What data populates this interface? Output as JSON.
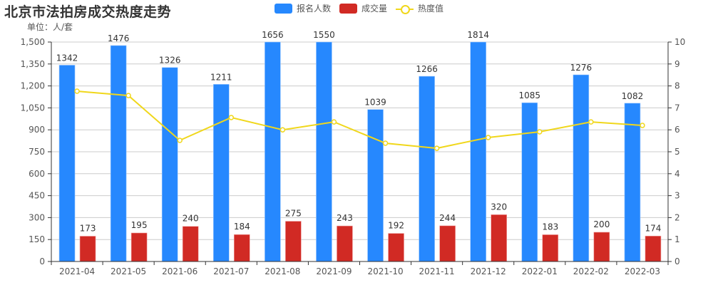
{
  "header": {
    "title": "北京市法拍房成交热度走势",
    "unit": "单位：人/套"
  },
  "legend": [
    {
      "label": "报名人数",
      "color": "#2688fe",
      "type": "bar"
    },
    {
      "label": "成交量",
      "color": "#d12a24",
      "type": "bar"
    },
    {
      "label": "热度值",
      "color": "#f0d71b",
      "type": "line"
    }
  ],
  "chart_data": {
    "type": "bar",
    "title": "北京市法拍房成交热度走势",
    "subtitle": "单位：人/套",
    "categories": [
      "2021-04",
      "2021-05",
      "2021-06",
      "2021-07",
      "2021-08",
      "2021-09",
      "2021-10",
      "2021-11",
      "2021-12",
      "2022-01",
      "2022-02",
      "2022-03"
    ],
    "series": [
      {
        "name": "报名人数",
        "type": "bar",
        "axis": "left",
        "color": "#2688fe",
        "values": [
          1342,
          1476,
          1326,
          1211,
          1656,
          1550,
          1039,
          1266,
          1814,
          1085,
          1276,
          1082
        ]
      },
      {
        "name": "成交量",
        "type": "bar",
        "axis": "left",
        "color": "#d12a24",
        "values": [
          173,
          195,
          240,
          184,
          275,
          243,
          192,
          244,
          320,
          183,
          200,
          174
        ]
      },
      {
        "name": "热度值",
        "type": "line",
        "axis": "right",
        "color": "#f0d71b",
        "values": [
          7.76,
          7.56,
          5.52,
          6.56,
          6.0,
          6.36,
          5.39,
          5.16,
          5.65,
          5.91,
          6.36,
          6.2
        ]
      }
    ],
    "xlabel": "",
    "ylabel": "",
    "ylim": [
      0,
      1500
    ],
    "y2lim": [
      0,
      10
    ],
    "yticks": [
      "0",
      "150",
      "300",
      "450",
      "600",
      "750",
      "900",
      "1,050",
      "1,200",
      "1,350",
      "1,500"
    ],
    "y2ticks": [
      "0",
      "1",
      "2",
      "3",
      "4",
      "5",
      "6",
      "7",
      "8",
      "9",
      "10"
    ],
    "grid": true,
    "legend_position": "top"
  }
}
